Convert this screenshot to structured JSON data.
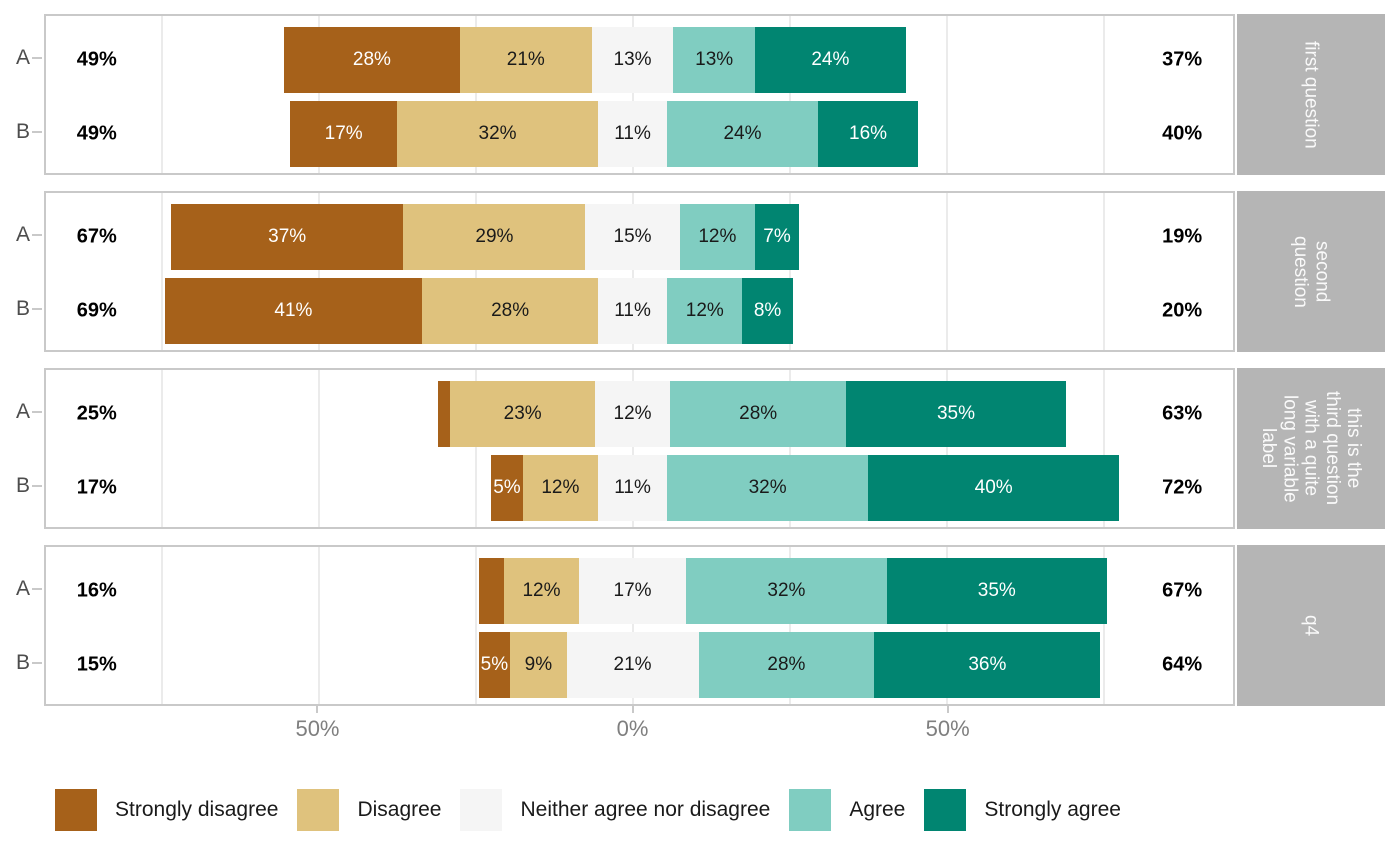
{
  "chart_data": {
    "type": "bar",
    "subtype": "diverging-stacked-likert",
    "title": "",
    "xlabel": "",
    "ylabel": "",
    "legend_position": "bottom",
    "grid": "vertical",
    "categories": [
      "Strongly disagree",
      "Disagree",
      "Neither agree nor disagree",
      "Agree",
      "Strongly agree"
    ],
    "category_colors": [
      "#a6611a",
      "#dfc27d",
      "#f5f5f5",
      "#80cdc1",
      "#018571"
    ],
    "category_label_colors": [
      "#ffffff",
      "#1a1a1a",
      "#1a1a1a",
      "#1a1a1a",
      "#ffffff"
    ],
    "x_axis": {
      "domain": [
        -93.4,
        95.6
      ],
      "gridlines": [
        -75,
        -50,
        -25,
        0,
        25,
        50,
        75
      ],
      "ticks": [
        {
          "pos": -50,
          "label": "50%"
        },
        {
          "pos": 0,
          "label": "0%"
        },
        {
          "pos": 50,
          "label": "50%"
        }
      ],
      "centering": "neutral category centered on 0"
    },
    "facets": [
      {
        "strip": "first question",
        "rows": [
          {
            "group": "A",
            "neg_total": "49%",
            "pos_total": "37%",
            "values": [
              28,
              21,
              13,
              13,
              24
            ],
            "labels": [
              "28%",
              "21%",
              "13%",
              "13%",
              "24%"
            ]
          },
          {
            "group": "B",
            "neg_total": "49%",
            "pos_total": "40%",
            "values": [
              17,
              32,
              11,
              24,
              16
            ],
            "labels": [
              "17%",
              "32%",
              "11%",
              "24%",
              "16%"
            ]
          }
        ]
      },
      {
        "strip": "second\nquestion",
        "rows": [
          {
            "group": "A",
            "neg_total": "67%",
            "pos_total": "19%",
            "values": [
              37,
              29,
              15,
              12,
              7
            ],
            "labels": [
              "37%",
              "29%",
              "15%",
              "12%",
              "7%"
            ]
          },
          {
            "group": "B",
            "neg_total": "69%",
            "pos_total": "20%",
            "values": [
              41,
              28,
              11,
              12,
              8
            ],
            "labels": [
              "41%",
              "28%",
              "11%",
              "12%",
              "8%"
            ]
          }
        ]
      },
      {
        "strip": "this is the\nthird question\nwith a quite\nlong variable\nlabel",
        "rows": [
          {
            "group": "A",
            "neg_total": "25%",
            "pos_total": "63%",
            "values": [
              2,
              23,
              12,
              28,
              35
            ],
            "labels": [
              "",
              "23%",
              "12%",
              "28%",
              "35%"
            ]
          },
          {
            "group": "B",
            "neg_total": "17%",
            "pos_total": "72%",
            "values": [
              5,
              12,
              11,
              32,
              40
            ],
            "labels": [
              "5%",
              "12%",
              "11%",
              "32%",
              "40%"
            ]
          }
        ]
      },
      {
        "strip": "q4",
        "rows": [
          {
            "group": "A",
            "neg_total": "16%",
            "pos_total": "67%",
            "values": [
              4,
              12,
              17,
              32,
              35
            ],
            "labels": [
              "",
              "12%",
              "17%",
              "32%",
              "35%"
            ]
          },
          {
            "group": "B",
            "neg_total": "15%",
            "pos_total": "64%",
            "values": [
              5,
              9,
              21,
              28,
              36
            ],
            "labels": [
              "5%",
              "9%",
              "21%",
              "28%",
              "36%"
            ]
          }
        ]
      }
    ]
  },
  "theme": {
    "panel_background": "#ffffff",
    "panel_border": "#c9c9c9",
    "gridline_color": "#ebebeb",
    "strip_background": "#b5b5b5",
    "strip_text": "#fafafa",
    "axis_text": "#7f7f7f",
    "group_label_text": "#4d4d4d",
    "tick_mark": "#c9c9c9",
    "total_text": "#000000"
  }
}
